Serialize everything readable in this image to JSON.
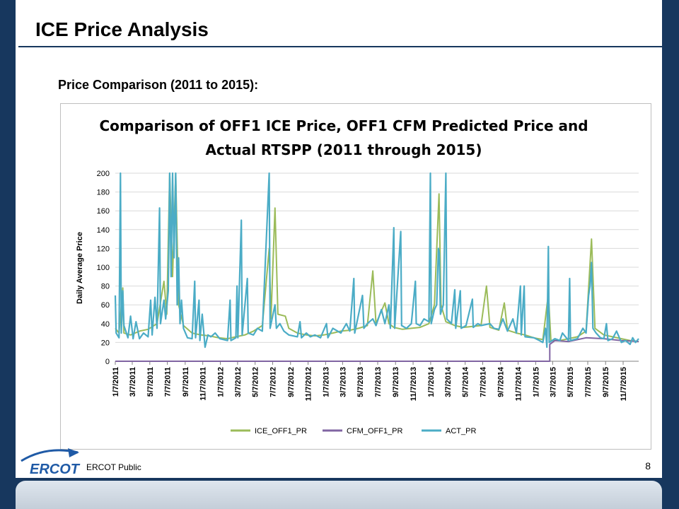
{
  "slide": {
    "title": "ICE Price Analysis",
    "subtitle": "Price Comparison (2011 to 2015):",
    "footer": "ERCOT Public",
    "page_number": "8",
    "logo_text": "ERCOT"
  },
  "colors": {
    "background": "#17375e",
    "ice": "#9bbb59",
    "cfm": "#8064a2",
    "act": "#4bacc6"
  },
  "chart_data": {
    "type": "line",
    "title_lines": [
      "Comparison of OFF1 ICE Price, OFF1 CFM Predicted Price and",
      "Actual RTSPP (2011 through 2015)"
    ],
    "xlabel": "",
    "ylabel": "Daily Average Price",
    "ylim": [
      0,
      200
    ],
    "yticks": [
      0,
      20,
      40,
      60,
      80,
      100,
      120,
      140,
      160,
      180,
      200
    ],
    "grid": true,
    "legend_position": "bottom",
    "xlim": [
      "2011-01-07",
      "2015-12-31"
    ],
    "xticks": [
      "1/7/2011",
      "3/7/2011",
      "5/7/2011",
      "7/7/2011",
      "9/7/2011",
      "11/7/2011",
      "1/7/2012",
      "3/7/2012",
      "5/7/2012",
      "7/7/2012",
      "9/7/2012",
      "11/7/2012",
      "1/7/2013",
      "3/7/2013",
      "5/7/2013",
      "7/7/2013",
      "9/7/2013",
      "11/7/2013",
      "1/7/2014",
      "3/7/2014",
      "5/7/2014",
      "7/7/2014",
      "9/7/2014",
      "11/7/2014",
      "1/7/2015",
      "3/7/2015",
      "5/7/2015",
      "7/7/2015",
      "9/7/2015",
      "11/7/2015"
    ],
    "series": [
      {
        "name": "ICE_OFF1_PR",
        "color": "#9bbb59",
        "points": [
          [
            "2011-01-07",
            35
          ],
          [
            "2011-01-20",
            30
          ],
          [
            "2011-02-02",
            78
          ],
          [
            "2011-02-06",
            30
          ],
          [
            "2011-03-01",
            28
          ],
          [
            "2011-04-01",
            32
          ],
          [
            "2011-05-01",
            34
          ],
          [
            "2011-06-01",
            40
          ],
          [
            "2011-06-25",
            85
          ],
          [
            "2011-07-05",
            50
          ],
          [
            "2011-07-15",
            200
          ],
          [
            "2011-07-25",
            90
          ],
          [
            "2011-08-05",
            200
          ],
          [
            "2011-08-15",
            60
          ],
          [
            "2011-09-01",
            38
          ],
          [
            "2011-10-01",
            30
          ],
          [
            "2011-11-01",
            28
          ],
          [
            "2011-12-01",
            27
          ],
          [
            "2012-01-01",
            25
          ],
          [
            "2012-02-01",
            24
          ],
          [
            "2012-03-01",
            26
          ],
          [
            "2012-04-01",
            28
          ],
          [
            "2012-05-01",
            32
          ],
          [
            "2012-06-01",
            38
          ],
          [
            "2012-06-25",
            120
          ],
          [
            "2012-07-01",
            45
          ],
          [
            "2012-07-15",
            163
          ],
          [
            "2012-07-25",
            50
          ],
          [
            "2012-08-20",
            48
          ],
          [
            "2012-09-01",
            35
          ],
          [
            "2012-10-01",
            30
          ],
          [
            "2012-11-01",
            28
          ],
          [
            "2012-12-01",
            27
          ],
          [
            "2013-01-01",
            28
          ],
          [
            "2013-02-01",
            30
          ],
          [
            "2013-03-01",
            32
          ],
          [
            "2013-04-01",
            33
          ],
          [
            "2013-05-01",
            35
          ],
          [
            "2013-06-01",
            38
          ],
          [
            "2013-06-20",
            96
          ],
          [
            "2013-07-01",
            40
          ],
          [
            "2013-08-01",
            62
          ],
          [
            "2013-08-15",
            40
          ],
          [
            "2013-09-01",
            36
          ],
          [
            "2013-10-01",
            34
          ],
          [
            "2013-11-01",
            35
          ],
          [
            "2013-12-01",
            36
          ],
          [
            "2014-01-01",
            40
          ],
          [
            "2014-01-20",
            60
          ],
          [
            "2014-02-05",
            178
          ],
          [
            "2014-02-12",
            60
          ],
          [
            "2014-03-01",
            42
          ],
          [
            "2014-04-01",
            38
          ],
          [
            "2014-05-01",
            36
          ],
          [
            "2014-06-01",
            37
          ],
          [
            "2014-07-01",
            38
          ],
          [
            "2014-07-20",
            80
          ],
          [
            "2014-08-01",
            36
          ],
          [
            "2014-09-01",
            33
          ],
          [
            "2014-09-20",
            62
          ],
          [
            "2014-10-01",
            33
          ],
          [
            "2014-11-01",
            30
          ],
          [
            "2014-12-01",
            28
          ],
          [
            "2015-01-01",
            25
          ],
          [
            "2015-02-01",
            23
          ],
          [
            "2015-02-20",
            72
          ],
          [
            "2015-03-01",
            22
          ],
          [
            "2015-04-01",
            22
          ],
          [
            "2015-05-01",
            24
          ],
          [
            "2015-06-01",
            26
          ],
          [
            "2015-07-01",
            32
          ],
          [
            "2015-07-20",
            130
          ],
          [
            "2015-08-01",
            35
          ],
          [
            "2015-09-01",
            28
          ],
          [
            "2015-10-01",
            26
          ],
          [
            "2015-11-01",
            24
          ],
          [
            "2015-12-01",
            22
          ],
          [
            "2015-12-31",
            21
          ]
        ]
      },
      {
        "name": "CFM_OFF1_PR",
        "color": "#8064a2",
        "points": [
          [
            "2011-01-07",
            0
          ],
          [
            "2015-02-25",
            0
          ],
          [
            "2015-02-25",
            18
          ],
          [
            "2015-03-15",
            22
          ],
          [
            "2015-05-01",
            21
          ],
          [
            "2015-07-01",
            25
          ],
          [
            "2015-09-01",
            24
          ],
          [
            "2015-11-01",
            22
          ],
          [
            "2015-12-31",
            21
          ]
        ]
      },
      {
        "name": "ACT_PR",
        "color": "#4bacc6",
        "points": [
          [
            "2011-01-07",
            70
          ],
          [
            "2011-01-10",
            30
          ],
          [
            "2011-01-20",
            25
          ],
          [
            "2011-01-25",
            200
          ],
          [
            "2011-01-28",
            30
          ],
          [
            "2011-02-02",
            75
          ],
          [
            "2011-02-06",
            38
          ],
          [
            "2011-02-20",
            25
          ],
          [
            "2011-03-01",
            48
          ],
          [
            "2011-03-10",
            24
          ],
          [
            "2011-03-20",
            42
          ],
          [
            "2011-04-01",
            24
          ],
          [
            "2011-04-15",
            30
          ],
          [
            "2011-05-01",
            26
          ],
          [
            "2011-05-10",
            65
          ],
          [
            "2011-05-15",
            28
          ],
          [
            "2011-05-25",
            68
          ],
          [
            "2011-06-01",
            35
          ],
          [
            "2011-06-10",
            163
          ],
          [
            "2011-06-13",
            40
          ],
          [
            "2011-06-25",
            65
          ],
          [
            "2011-07-01",
            45
          ],
          [
            "2011-07-10",
            75
          ],
          [
            "2011-07-15",
            200
          ],
          [
            "2011-07-20",
            90
          ],
          [
            "2011-07-25",
            200
          ],
          [
            "2011-07-30",
            110
          ],
          [
            "2011-08-05",
            200
          ],
          [
            "2011-08-10",
            60
          ],
          [
            "2011-08-15",
            110
          ],
          [
            "2011-08-20",
            40
          ],
          [
            "2011-08-25",
            65
          ],
          [
            "2011-09-01",
            35
          ],
          [
            "2011-09-15",
            25
          ],
          [
            "2011-10-01",
            24
          ],
          [
            "2011-10-10",
            85
          ],
          [
            "2011-10-13",
            25
          ],
          [
            "2011-10-25",
            65
          ],
          [
            "2011-10-28",
            22
          ],
          [
            "2011-11-05",
            50
          ],
          [
            "2011-11-15",
            15
          ],
          [
            "2011-11-25",
            28
          ],
          [
            "2011-12-05",
            26
          ],
          [
            "2011-12-20",
            30
          ],
          [
            "2012-01-05",
            24
          ],
          [
            "2012-02-01",
            22
          ],
          [
            "2012-02-10",
            65
          ],
          [
            "2012-02-13",
            22
          ],
          [
            "2012-03-01",
            25
          ],
          [
            "2012-03-05",
            80
          ],
          [
            "2012-03-08",
            25
          ],
          [
            "2012-03-20",
            150
          ],
          [
            "2012-03-23",
            28
          ],
          [
            "2012-04-10",
            88
          ],
          [
            "2012-04-13",
            30
          ],
          [
            "2012-05-01",
            28
          ],
          [
            "2012-05-15",
            35
          ],
          [
            "2012-06-01",
            32
          ],
          [
            "2012-06-25",
            200
          ],
          [
            "2012-06-28",
            35
          ],
          [
            "2012-07-15",
            60
          ],
          [
            "2012-07-20",
            35
          ],
          [
            "2012-08-01",
            40
          ],
          [
            "2012-08-15",
            32
          ],
          [
            "2012-09-01",
            28
          ],
          [
            "2012-10-01",
            26
          ],
          [
            "2012-10-10",
            42
          ],
          [
            "2012-10-15",
            25
          ],
          [
            "2012-11-01",
            30
          ],
          [
            "2012-11-15",
            26
          ],
          [
            "2012-12-01",
            28
          ],
          [
            "2012-12-20",
            25
          ],
          [
            "2013-01-10",
            40
          ],
          [
            "2013-01-15",
            25
          ],
          [
            "2013-02-01",
            35
          ],
          [
            "2013-03-01",
            30
          ],
          [
            "2013-03-20",
            40
          ],
          [
            "2013-04-01",
            32
          ],
          [
            "2013-04-15",
            88
          ],
          [
            "2013-04-18",
            30
          ],
          [
            "2013-05-15",
            70
          ],
          [
            "2013-05-20",
            35
          ],
          [
            "2013-06-01",
            40
          ],
          [
            "2013-06-20",
            45
          ],
          [
            "2013-07-01",
            38
          ],
          [
            "2013-07-20",
            55
          ],
          [
            "2013-08-01",
            40
          ],
          [
            "2013-08-15",
            60
          ],
          [
            "2013-08-20",
            35
          ],
          [
            "2013-09-01",
            142
          ],
          [
            "2013-09-04",
            35
          ],
          [
            "2013-09-25",
            138
          ],
          [
            "2013-09-28",
            38
          ],
          [
            "2013-10-15",
            35
          ],
          [
            "2013-11-01",
            40
          ],
          [
            "2013-11-15",
            85
          ],
          [
            "2013-11-18",
            40
          ],
          [
            "2013-12-01",
            38
          ],
          [
            "2013-12-15",
            45
          ],
          [
            "2014-01-01",
            42
          ],
          [
            "2014-01-06",
            200
          ],
          [
            "2014-01-09",
            40
          ],
          [
            "2014-01-20",
            55
          ],
          [
            "2014-01-28",
            60
          ],
          [
            "2014-02-03",
            120
          ],
          [
            "2014-02-06",
            115
          ],
          [
            "2014-02-10",
            50
          ],
          [
            "2014-02-20",
            60
          ],
          [
            "2014-03-01",
            200
          ],
          [
            "2014-03-04",
            45
          ],
          [
            "2014-03-20",
            40
          ],
          [
            "2014-04-01",
            76
          ],
          [
            "2014-04-04",
            35
          ],
          [
            "2014-04-20",
            75
          ],
          [
            "2014-04-23",
            35
          ],
          [
            "2014-05-10",
            38
          ],
          [
            "2014-06-01",
            66
          ],
          [
            "2014-06-04",
            36
          ],
          [
            "2014-06-20",
            40
          ],
          [
            "2014-07-01",
            38
          ],
          [
            "2014-08-01",
            40
          ],
          [
            "2014-08-15",
            35
          ],
          [
            "2014-09-01",
            34
          ],
          [
            "2014-09-15",
            45
          ],
          [
            "2014-10-01",
            32
          ],
          [
            "2014-10-20",
            45
          ],
          [
            "2014-11-01",
            30
          ],
          [
            "2014-11-15",
            80
          ],
          [
            "2014-11-18",
            28
          ],
          [
            "2014-11-28",
            80
          ],
          [
            "2014-12-01",
            26
          ],
          [
            "2015-01-01",
            25
          ],
          [
            "2015-01-20",
            22
          ],
          [
            "2015-02-01",
            20
          ],
          [
            "2015-02-10",
            35
          ],
          [
            "2015-02-15",
            15
          ],
          [
            "2015-02-20",
            122
          ],
          [
            "2015-02-23",
            20
          ],
          [
            "2015-03-15",
            24
          ],
          [
            "2015-04-01",
            22
          ],
          [
            "2015-04-10",
            30
          ],
          [
            "2015-05-01",
            22
          ],
          [
            "2015-05-05",
            88
          ],
          [
            "2015-05-08",
            22
          ],
          [
            "2015-06-01",
            24
          ],
          [
            "2015-06-20",
            35
          ],
          [
            "2015-07-01",
            30
          ],
          [
            "2015-07-10",
            70
          ],
          [
            "2015-07-15",
            80
          ],
          [
            "2015-07-20",
            105
          ],
          [
            "2015-07-25",
            35
          ],
          [
            "2015-08-05",
            30
          ],
          [
            "2015-08-20",
            25
          ],
          [
            "2015-09-01",
            24
          ],
          [
            "2015-09-10",
            40
          ],
          [
            "2015-09-15",
            22
          ],
          [
            "2015-10-01",
            24
          ],
          [
            "2015-10-15",
            32
          ],
          [
            "2015-11-01",
            20
          ],
          [
            "2015-11-15",
            22
          ],
          [
            "2015-12-01",
            18
          ],
          [
            "2015-12-10",
            25
          ],
          [
            "2015-12-20",
            20
          ],
          [
            "2015-12-31",
            24
          ]
        ]
      }
    ]
  }
}
